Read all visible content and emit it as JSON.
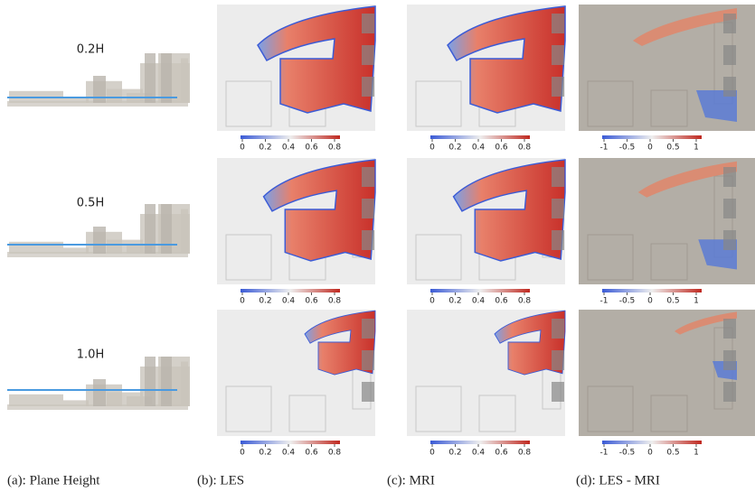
{
  "rows": [
    {
      "label": "0.2H"
    },
    {
      "label": "0.5H"
    },
    {
      "label": "1.0H"
    }
  ],
  "colorbars": {
    "les": {
      "range": [
        0,
        0.8
      ],
      "ticks": [
        0,
        0.2,
        0.4,
        0.6,
        0.8
      ]
    },
    "mri": {
      "range": [
        0,
        0.8
      ],
      "ticks": [
        0,
        0.2,
        0.4,
        0.6,
        0.8
      ]
    },
    "diff": {
      "range": [
        -1,
        1
      ],
      "ticks": [
        -1,
        -0.5,
        0,
        0.5,
        1
      ]
    }
  },
  "captions": [
    "(a): Plane Height",
    "(b): LES",
    "(c): MRI",
    "(d): LES - MRI"
  ]
}
